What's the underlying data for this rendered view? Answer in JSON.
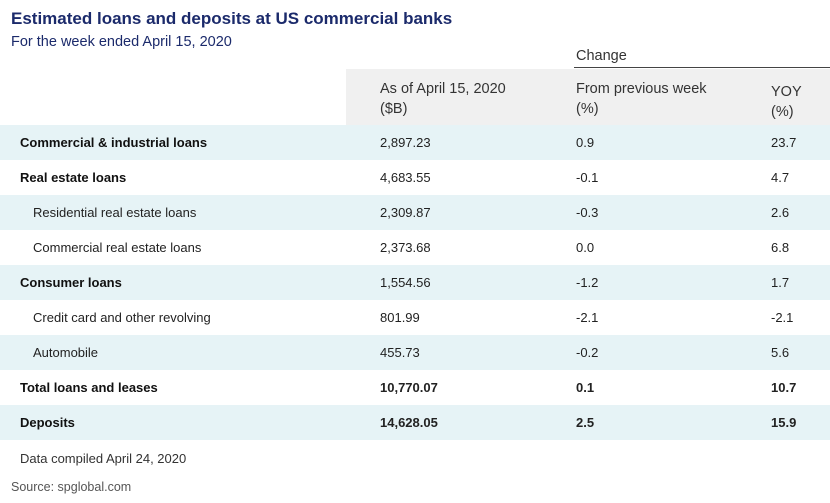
{
  "title": "Estimated loans and deposits at US commercial banks",
  "subtitle": "For the week ended April 15, 2020",
  "change_label": "Change",
  "headers": {
    "asof_line1": "As of April 15, 2020",
    "asof_line2": "($B)",
    "week_line1": "From previous week",
    "week_line2": "(%)",
    "yoy_line1": "YOY",
    "yoy_line2": "(%)"
  },
  "rows": [
    {
      "label": "Commercial & industrial loans",
      "asof": "2,897.23",
      "week": "0.9",
      "yoy": "23.7"
    },
    {
      "label": "Real estate loans",
      "asof": "4,683.55",
      "week": "-0.1",
      "yoy": "4.7"
    },
    {
      "label": "Residential real estate loans",
      "asof": "2,309.87",
      "week": "-0.3",
      "yoy": "2.6"
    },
    {
      "label": "Commercial real estate loans",
      "asof": "2,373.68",
      "week": "0.0",
      "yoy": "6.8"
    },
    {
      "label": "Consumer loans",
      "asof": "1,554.56",
      "week": "-1.2",
      "yoy": "1.7"
    },
    {
      "label": "Credit card and other revolving",
      "asof": "801.99",
      "week": "-2.1",
      "yoy": "-2.1"
    },
    {
      "label": "Automobile",
      "asof": "455.73",
      "week": "-0.2",
      "yoy": "5.6"
    },
    {
      "label": "Total loans and leases",
      "asof": "10,770.07",
      "week": "0.1",
      "yoy": "10.7"
    },
    {
      "label": "Deposits",
      "asof": "14,628.05",
      "week": "2.5",
      "yoy": "15.9"
    }
  ],
  "note": "Data compiled April 24, 2020",
  "source": "Source: spglobal.com",
  "colors": {
    "title": "#1b2a6b",
    "row_shade": "#e6f3f6",
    "header_bg": "#f0f0f0"
  }
}
